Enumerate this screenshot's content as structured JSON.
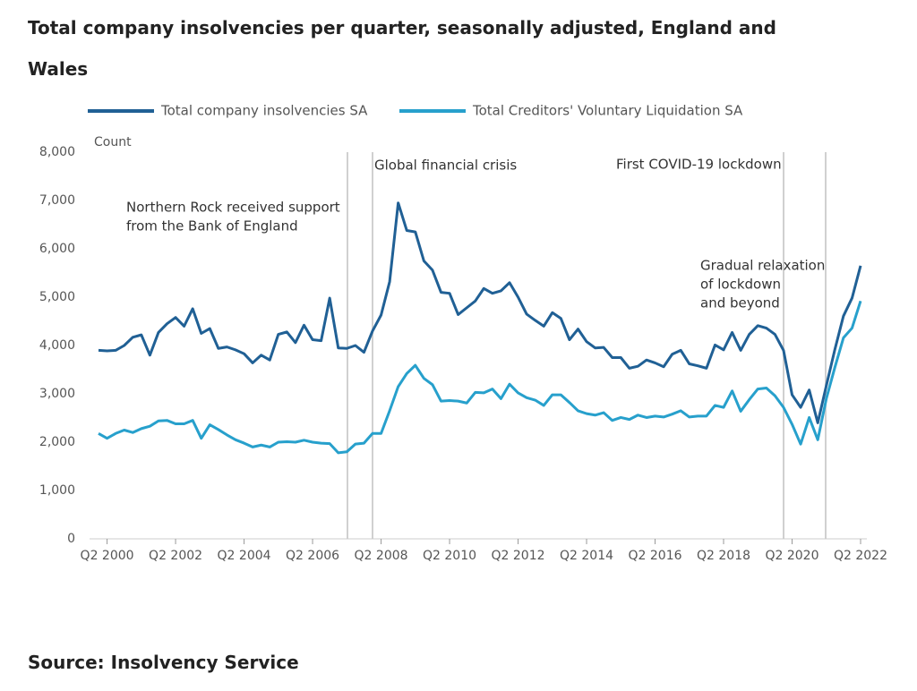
{
  "chart_data": {
    "type": "line",
    "title": "Total company insolvencies per quarter, seasonally adjusted, England and Wales",
    "y_label": "Count",
    "source": "Source: Insolvency Service",
    "categories": [
      null,
      "Q2 2000",
      null,
      null,
      null,
      null,
      null,
      null,
      null,
      "Q2 2002",
      null,
      null,
      null,
      null,
      null,
      null,
      null,
      "Q2 2004",
      null,
      null,
      null,
      null,
      null,
      null,
      null,
      "Q2 2006",
      null,
      null,
      null,
      null,
      null,
      null,
      null,
      "Q2 2008",
      null,
      null,
      null,
      null,
      null,
      null,
      null,
      "Q2 2010",
      null,
      null,
      null,
      null,
      null,
      null,
      null,
      "Q2 2012",
      null,
      null,
      null,
      null,
      null,
      null,
      null,
      "Q2 2014",
      null,
      null,
      null,
      null,
      null,
      null,
      null,
      "Q2 2016",
      null,
      null,
      null,
      null,
      null,
      null,
      null,
      "Q2 2018",
      null,
      null,
      null,
      null,
      null,
      null,
      null,
      "Q2 2020",
      null,
      null,
      null,
      null,
      null,
      null,
      null,
      "Q2 2022"
    ],
    "series": [
      {
        "name": "Total company insolvencies SA",
        "color": "#206095",
        "values": [
          3900,
          3890,
          3900,
          4000,
          4170,
          4220,
          3800,
          4270,
          4450,
          4580,
          4400,
          4760,
          4250,
          4350,
          3940,
          3970,
          3910,
          3830,
          3640,
          3800,
          3700,
          4230,
          4280,
          4060,
          4420,
          4120,
          4100,
          4980,
          3950,
          3940,
          4000,
          3860,
          4300,
          4630,
          5320,
          6950,
          6380,
          6350,
          5750,
          5560,
          5100,
          5080,
          4640,
          4780,
          4920,
          5180,
          5080,
          5130,
          5300,
          5000,
          4650,
          4520,
          4400,
          4680,
          4560,
          4120,
          4340,
          4080,
          3950,
          3960,
          3750,
          3750,
          3530,
          3570,
          3700,
          3640,
          3560,
          3820,
          3900,
          3620,
          3580,
          3530,
          4010,
          3910,
          4270,
          3900,
          4230,
          4410,
          4360,
          4230,
          3900,
          2980,
          2720,
          3080,
          2400,
          3170,
          3920,
          4610,
          4980,
          5650
        ]
      },
      {
        "name": "Total Creditors' Voluntary Liquidation SA",
        "color": "#27a0cc",
        "values": [
          2180,
          2080,
          2180,
          2250,
          2200,
          2280,
          2330,
          2440,
          2450,
          2380,
          2380,
          2450,
          2080,
          2360,
          2260,
          2150,
          2050,
          1980,
          1900,
          1940,
          1900,
          2000,
          2010,
          2000,
          2040,
          2000,
          1980,
          1970,
          1780,
          1800,
          1960,
          1980,
          2180,
          2180,
          2650,
          3150,
          3420,
          3590,
          3320,
          3190,
          2850,
          2860,
          2850,
          2810,
          3030,
          3020,
          3100,
          2900,
          3200,
          3020,
          2920,
          2870,
          2760,
          2980,
          2980,
          2820,
          2650,
          2590,
          2560,
          2610,
          2450,
          2510,
          2470,
          2560,
          2510,
          2540,
          2520,
          2580,
          2650,
          2520,
          2540,
          2540,
          2760,
          2720,
          3060,
          2640,
          2880,
          3100,
          3120,
          2960,
          2720,
          2370,
          1960,
          2510,
          2050,
          2900,
          3550,
          4160,
          4360,
          4920
        ]
      }
    ],
    "ylim": [
      0,
      8000
    ],
    "yticks": [
      0,
      {
        "value": 1000,
        "label": "1,000"
      },
      {
        "value": 2000,
        "label": "2,000"
      },
      {
        "value": 3000,
        "label": "3,000"
      },
      {
        "value": 4000,
        "label": "4,000"
      },
      {
        "value": 5000,
        "label": "5,000"
      },
      {
        "value": 6000,
        "label": "6,000"
      },
      {
        "value": 7000,
        "label": "7,000"
      },
      {
        "value": 8000,
        "label": "8,000"
      }
    ],
    "annotations": [
      {
        "lines": [
          "Northern Rock received support",
          "from the Bank of England"
        ]
      },
      {
        "lines": [
          "Global financial crisis"
        ]
      },
      {
        "lines": [
          "First COVID-19 lockdown"
        ]
      },
      {
        "lines": [
          "Gradual relaxation",
          "of lockdown",
          "and beyond"
        ]
      }
    ]
  }
}
